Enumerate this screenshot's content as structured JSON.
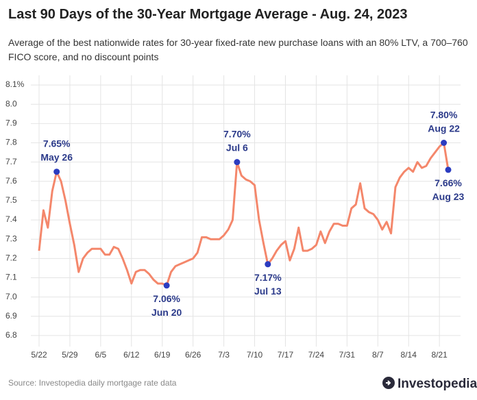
{
  "chart_data": {
    "type": "line",
    "title": "Last 90 Days of the 30-Year Mortgage Average - Aug. 24, 2023",
    "subtitle": "Average of the best nationwide rates for 30-year fixed-rate new purchase loans with an 80% LTV, a 700–760 FICO score, and no discount points",
    "source": "Source: Investopedia daily mortgage rate data",
    "brand": "Investopedia",
    "categories": [
      "5/22",
      null,
      null,
      null,
      null,
      null,
      null,
      "5/29",
      null,
      null,
      null,
      null,
      null,
      null,
      "6/5",
      null,
      null,
      null,
      null,
      null,
      null,
      "6/12",
      null,
      null,
      null,
      null,
      null,
      null,
      "6/19",
      null,
      null,
      null,
      null,
      null,
      null,
      "6/26",
      null,
      null,
      null,
      null,
      null,
      null,
      "7/3",
      null,
      null,
      null,
      null,
      null,
      null,
      "7/10",
      null,
      null,
      null,
      null,
      null,
      null,
      "7/17",
      null,
      null,
      null,
      null,
      null,
      null,
      "7/24",
      null,
      null,
      null,
      null,
      null,
      null,
      "7/31",
      null,
      null,
      null,
      null,
      null,
      null,
      "8/7",
      null,
      null,
      null,
      null,
      null,
      null,
      "8/14",
      null,
      null,
      null,
      null,
      null,
      null,
      "8/21",
      null,
      null
    ],
    "values": [
      7.24,
      7.45,
      7.36,
      7.55,
      7.65,
      7.6,
      7.5,
      7.38,
      7.27,
      7.13,
      7.2,
      7.23,
      7.25,
      7.25,
      7.25,
      7.22,
      7.22,
      7.26,
      7.25,
      7.2,
      7.14,
      7.07,
      7.13,
      7.14,
      7.14,
      7.12,
      7.09,
      7.07,
      7.07,
      7.06,
      7.13,
      7.16,
      7.17,
      7.18,
      7.19,
      7.2,
      7.23,
      7.31,
      7.31,
      7.3,
      7.3,
      7.3,
      7.32,
      7.35,
      7.4,
      7.7,
      7.63,
      7.61,
      7.6,
      7.58,
      7.4,
      7.28,
      7.17,
      7.2,
      7.24,
      7.27,
      7.29,
      7.19,
      7.25,
      7.36,
      7.24,
      7.24,
      7.25,
      7.27,
      7.34,
      7.28,
      7.34,
      7.38,
      7.38,
      7.37,
      7.37,
      7.46,
      7.48,
      7.59,
      7.46,
      7.44,
      7.43,
      7.4,
      7.35,
      7.39,
      7.33,
      7.57,
      7.62,
      7.65,
      7.67,
      7.65,
      7.7,
      7.67,
      7.68,
      7.72,
      7.75,
      7.78,
      7.8,
      7.66
    ],
    "value_labels": [
      null,
      null,
      null,
      null,
      "7.65%",
      null,
      null,
      null,
      null,
      null,
      null,
      null,
      null,
      null,
      null,
      null,
      null,
      null,
      null,
      null,
      null,
      null,
      null,
      null,
      null,
      null,
      null,
      null,
      null,
      "7.06%",
      null,
      null,
      null,
      null,
      null,
      null,
      null,
      null,
      null,
      null,
      null,
      null,
      null,
      null,
      null,
      "7.70%",
      null,
      null,
      null,
      null,
      null,
      null,
      "7.17%",
      null,
      null,
      null,
      null,
      null,
      null,
      null,
      null,
      null,
      null,
      null,
      null,
      null,
      null,
      null,
      null,
      null,
      null,
      null,
      null,
      null,
      null,
      null,
      null,
      null,
      null,
      null,
      null,
      null,
      null,
      null,
      null,
      null,
      null,
      null,
      null,
      null,
      null,
      null,
      "7.80%",
      "7.66%"
    ],
    "point_labels": [
      null,
      null,
      null,
      null,
      "May 26",
      null,
      null,
      null,
      null,
      null,
      null,
      null,
      null,
      null,
      null,
      null,
      null,
      null,
      null,
      null,
      null,
      null,
      null,
      null,
      null,
      null,
      null,
      null,
      null,
      "Jun 20",
      null,
      null,
      null,
      null,
      null,
      null,
      null,
      null,
      null,
      null,
      null,
      null,
      null,
      null,
      null,
      "Jul 6",
      null,
      null,
      null,
      null,
      null,
      null,
      "Jul 13",
      null,
      null,
      null,
      null,
      null,
      null,
      null,
      null,
      null,
      null,
      null,
      null,
      null,
      null,
      null,
      null,
      null,
      null,
      null,
      null,
      null,
      null,
      null,
      null,
      null,
      null,
      null,
      null,
      null,
      null,
      null,
      null,
      null,
      null,
      null,
      null,
      null,
      null,
      null,
      "Aug 22",
      "Aug 23"
    ],
    "color": "#f4876b",
    "marker_color": "#2b3cc0",
    "ylim": [
      6.75,
      8.15
    ],
    "yticks": [
      6.8,
      6.9,
      {
        "value": 7,
        "label": "7.0"
      },
      7.1,
      7.2,
      7.3,
      7.4,
      7.5,
      7.6,
      7.7,
      7.8,
      7.9,
      {
        "value": 8,
        "label": "8.0"
      },
      {
        "value": 8.1,
        "label": "8.1%"
      }
    ],
    "grid": true
  }
}
